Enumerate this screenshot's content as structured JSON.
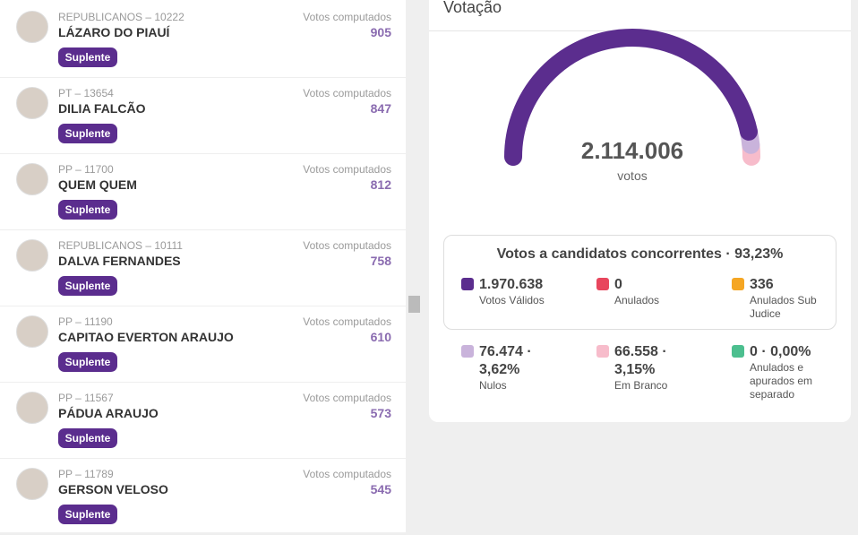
{
  "candidates": [
    {
      "party": "REPUBLICANOS – 10222",
      "name": "LÁZARO DO PIAUÍ",
      "badge": "Suplente",
      "votes_label": "Votos computados",
      "votes": "905"
    },
    {
      "party": "PT – 13654",
      "name": "DILIA FALCÃO",
      "badge": "Suplente",
      "votes_label": "Votos computados",
      "votes": "847"
    },
    {
      "party": "PP – 11700",
      "name": "QUEM QUEM",
      "badge": "Suplente",
      "votes_label": "Votos computados",
      "votes": "812"
    },
    {
      "party": "REPUBLICANOS – 10111",
      "name": "DALVA FERNANDES",
      "badge": "Suplente",
      "votes_label": "Votos computados",
      "votes": "758"
    },
    {
      "party": "PP – 11190",
      "name": "CAPITAO EVERTON ARAUJO",
      "badge": "Suplente",
      "votes_label": "Votos computados",
      "votes": "610"
    },
    {
      "party": "PP – 11567",
      "name": "PÁDUA ARAUJO",
      "badge": "Suplente",
      "votes_label": "Votos computados",
      "votes": "573"
    },
    {
      "party": "PP – 11789",
      "name": "GERSON VELOSO",
      "badge": "Suplente",
      "votes_label": "Votos computados",
      "votes": "545"
    }
  ],
  "voting": {
    "title": "Votação",
    "total": "2.114.006",
    "total_label": "votos",
    "summary": {
      "title": "Votos a candidatos concorrentes · 93,23%",
      "items": [
        {
          "value": "1.970.638",
          "label": "Votos Válidos",
          "color": "#5b2d8e"
        },
        {
          "value": "0",
          "label": "Anulados",
          "color": "#e8465d"
        },
        {
          "value": "336",
          "label": "Anulados Sub Judice",
          "color": "#f5a623"
        }
      ]
    },
    "others": [
      {
        "value": "76.474 · 3,62%",
        "label": "Nulos",
        "color": "#c9b3db"
      },
      {
        "value": "66.558 · 3,15%",
        "label": "Em Branco",
        "color": "#f7bccb"
      },
      {
        "value": "0 · 0,00%",
        "label": "Anulados e apurados em separado",
        "color": "#4cbf8f"
      }
    ]
  }
}
